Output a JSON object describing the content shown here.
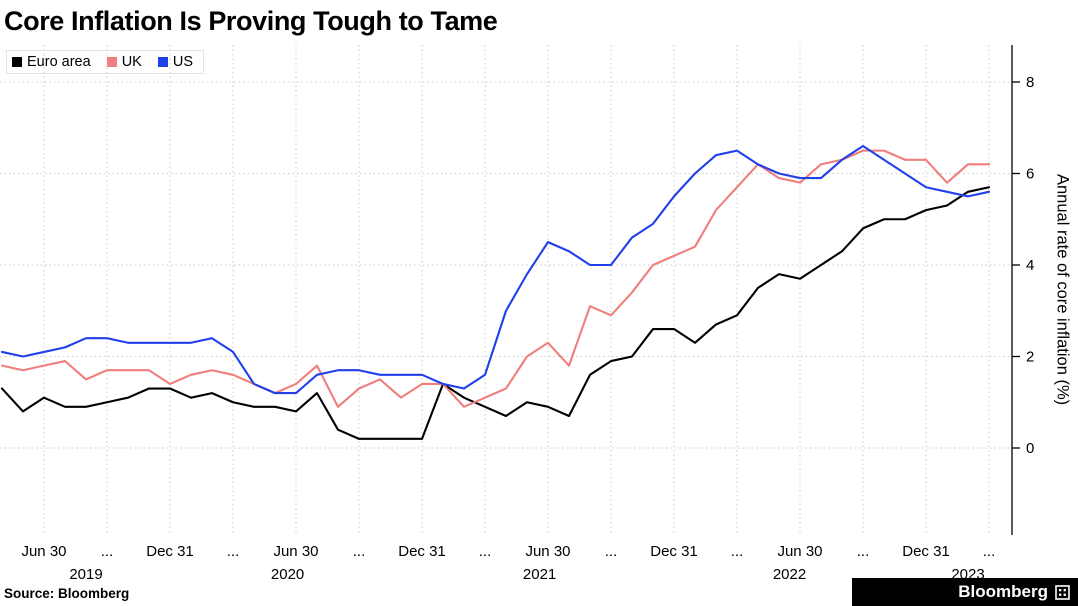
{
  "title": "Core Inflation Is Proving Tough to Tame",
  "source": "Source: Bloomberg",
  "brand": "Bloomberg",
  "chart_data": {
    "type": "line",
    "title": "Core Inflation Is Proving Tough to Tame",
    "xlabel": "",
    "ylabel": "Annual rate of core inflation (%)",
    "ylim": [
      -1.9,
      8.7
    ],
    "yticks": [
      0,
      2,
      4,
      6,
      8
    ],
    "grid": "dotted",
    "legend_position": "top-left",
    "x_unit": "month-end",
    "months": [
      "2019-04",
      "2019-05",
      "2019-06",
      "2019-07",
      "2019-08",
      "2019-09",
      "2019-10",
      "2019-11",
      "2019-12",
      "2020-01",
      "2020-02",
      "2020-03",
      "2020-04",
      "2020-05",
      "2020-06",
      "2020-07",
      "2020-08",
      "2020-09",
      "2020-10",
      "2020-11",
      "2020-12",
      "2021-01",
      "2021-02",
      "2021-03",
      "2021-04",
      "2021-05",
      "2021-06",
      "2021-07",
      "2021-08",
      "2021-09",
      "2021-10",
      "2021-11",
      "2021-12",
      "2022-01",
      "2022-02",
      "2022-03",
      "2022-04",
      "2022-05",
      "2022-06",
      "2022-07",
      "2022-08",
      "2022-09",
      "2022-10",
      "2022-11",
      "2022-12",
      "2023-01",
      "2023-02",
      "2023-03"
    ],
    "x_ticks": [
      {
        "i": 2,
        "label": "Jun 30"
      },
      {
        "i": 5,
        "label": "..."
      },
      {
        "i": 8,
        "label": "Dec 31"
      },
      {
        "i": 11,
        "label": "..."
      },
      {
        "i": 14,
        "label": "Jun 30"
      },
      {
        "i": 17,
        "label": "..."
      },
      {
        "i": 20,
        "label": "Dec 31"
      },
      {
        "i": 23,
        "label": "..."
      },
      {
        "i": 26,
        "label": "Jun 30"
      },
      {
        "i": 29,
        "label": "..."
      },
      {
        "i": 32,
        "label": "Dec 31"
      },
      {
        "i": 35,
        "label": "..."
      },
      {
        "i": 38,
        "label": "Jun 30"
      },
      {
        "i": 41,
        "label": "..."
      },
      {
        "i": 44,
        "label": "Dec 31"
      },
      {
        "i": 47,
        "label": "..."
      }
    ],
    "year_labels": [
      {
        "i": 4,
        "label": "2019"
      },
      {
        "i": 13.6,
        "label": "2020"
      },
      {
        "i": 25.6,
        "label": "2021"
      },
      {
        "i": 37.5,
        "label": "2022"
      },
      {
        "i": 46,
        "label": "2023"
      }
    ],
    "series": [
      {
        "name": "Euro area",
        "color": "#000000",
        "values": [
          1.3,
          0.8,
          1.1,
          0.9,
          0.9,
          1.0,
          1.1,
          1.3,
          1.3,
          1.1,
          1.2,
          1.0,
          0.9,
          0.9,
          0.8,
          1.2,
          0.4,
          0.2,
          0.2,
          0.2,
          0.2,
          1.4,
          1.1,
          0.9,
          0.7,
          1.0,
          0.9,
          0.7,
          1.6,
          1.9,
          2.0,
          2.6,
          2.6,
          2.3,
          2.7,
          2.9,
          3.5,
          3.8,
          3.7,
          4.0,
          4.3,
          4.8,
          5.0,
          5.0,
          5.2,
          5.3,
          5.6,
          5.7
        ]
      },
      {
        "name": "UK",
        "color": "#ef7e7c",
        "values": [
          1.8,
          1.7,
          1.8,
          1.9,
          1.5,
          1.7,
          1.7,
          1.7,
          1.4,
          1.6,
          1.7,
          1.6,
          1.4,
          1.2,
          1.4,
          1.8,
          0.9,
          1.3,
          1.5,
          1.1,
          1.4,
          1.4,
          0.9,
          1.1,
          1.3,
          2.0,
          2.3,
          1.8,
          3.1,
          2.9,
          3.4,
          4.0,
          4.2,
          4.4,
          5.2,
          5.7,
          6.2,
          5.9,
          5.8,
          6.2,
          6.3,
          6.5,
          6.5,
          6.3,
          6.3,
          5.8,
          6.2,
          6.2
        ]
      },
      {
        "name": "US",
        "color": "#2140e8",
        "values": [
          2.1,
          2.0,
          2.1,
          2.2,
          2.4,
          2.4,
          2.3,
          2.3,
          2.3,
          2.3,
          2.4,
          2.1,
          1.4,
          1.2,
          1.2,
          1.6,
          1.7,
          1.7,
          1.6,
          1.6,
          1.6,
          1.4,
          1.3,
          1.6,
          3.0,
          3.8,
          4.5,
          4.3,
          4.0,
          4.0,
          4.6,
          4.9,
          5.5,
          6.0,
          6.4,
          6.5,
          6.2,
          6.0,
          5.9,
          5.9,
          6.3,
          6.6,
          6.3,
          6.0,
          5.7,
          5.6,
          5.5,
          5.6
        ]
      }
    ]
  }
}
